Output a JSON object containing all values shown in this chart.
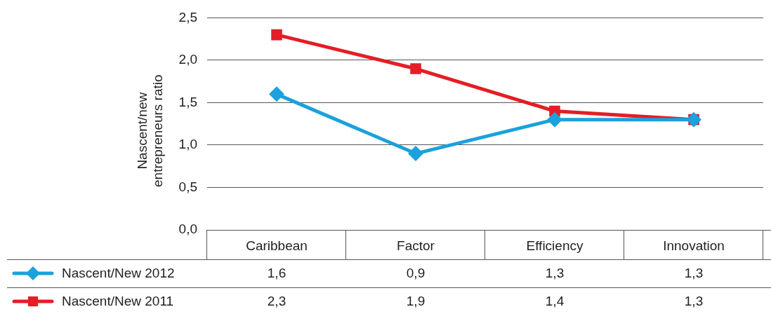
{
  "chart_data": {
    "type": "line",
    "ylabel": "Nascent/new\nentrepreneurs ratio",
    "categories": [
      "Caribbean",
      "Factor",
      "Efficiency",
      "Innovation"
    ],
    "series": [
      {
        "name": "Nascent/New 2012",
        "color": "#1ba1db",
        "marker": "diamond",
        "values": [
          1.6,
          0.9,
          1.3,
          1.3
        ],
        "value_labels": [
          "1,6",
          "0,9",
          "1,3",
          "1,3"
        ]
      },
      {
        "name": "Nascent/New 2011",
        "color": "#e31e26",
        "marker": "square",
        "values": [
          2.3,
          1.9,
          1.4,
          1.3
        ],
        "value_labels": [
          "2,3",
          "1,9",
          "1,4",
          "1,3"
        ]
      }
    ],
    "ylim": [
      0,
      2.5
    ],
    "yticks": [
      {
        "value": 0,
        "label": "0,0"
      },
      {
        "value": 0.5,
        "label": "0,5"
      },
      {
        "value": 1,
        "label": "1,0"
      },
      {
        "value": 1.5,
        "label": "1,5"
      },
      {
        "value": 2,
        "label": "2,0"
      },
      {
        "value": 2.5,
        "label": "2,5"
      }
    ],
    "grid": "y",
    "legend": "bottom",
    "line_style": "solid"
  }
}
